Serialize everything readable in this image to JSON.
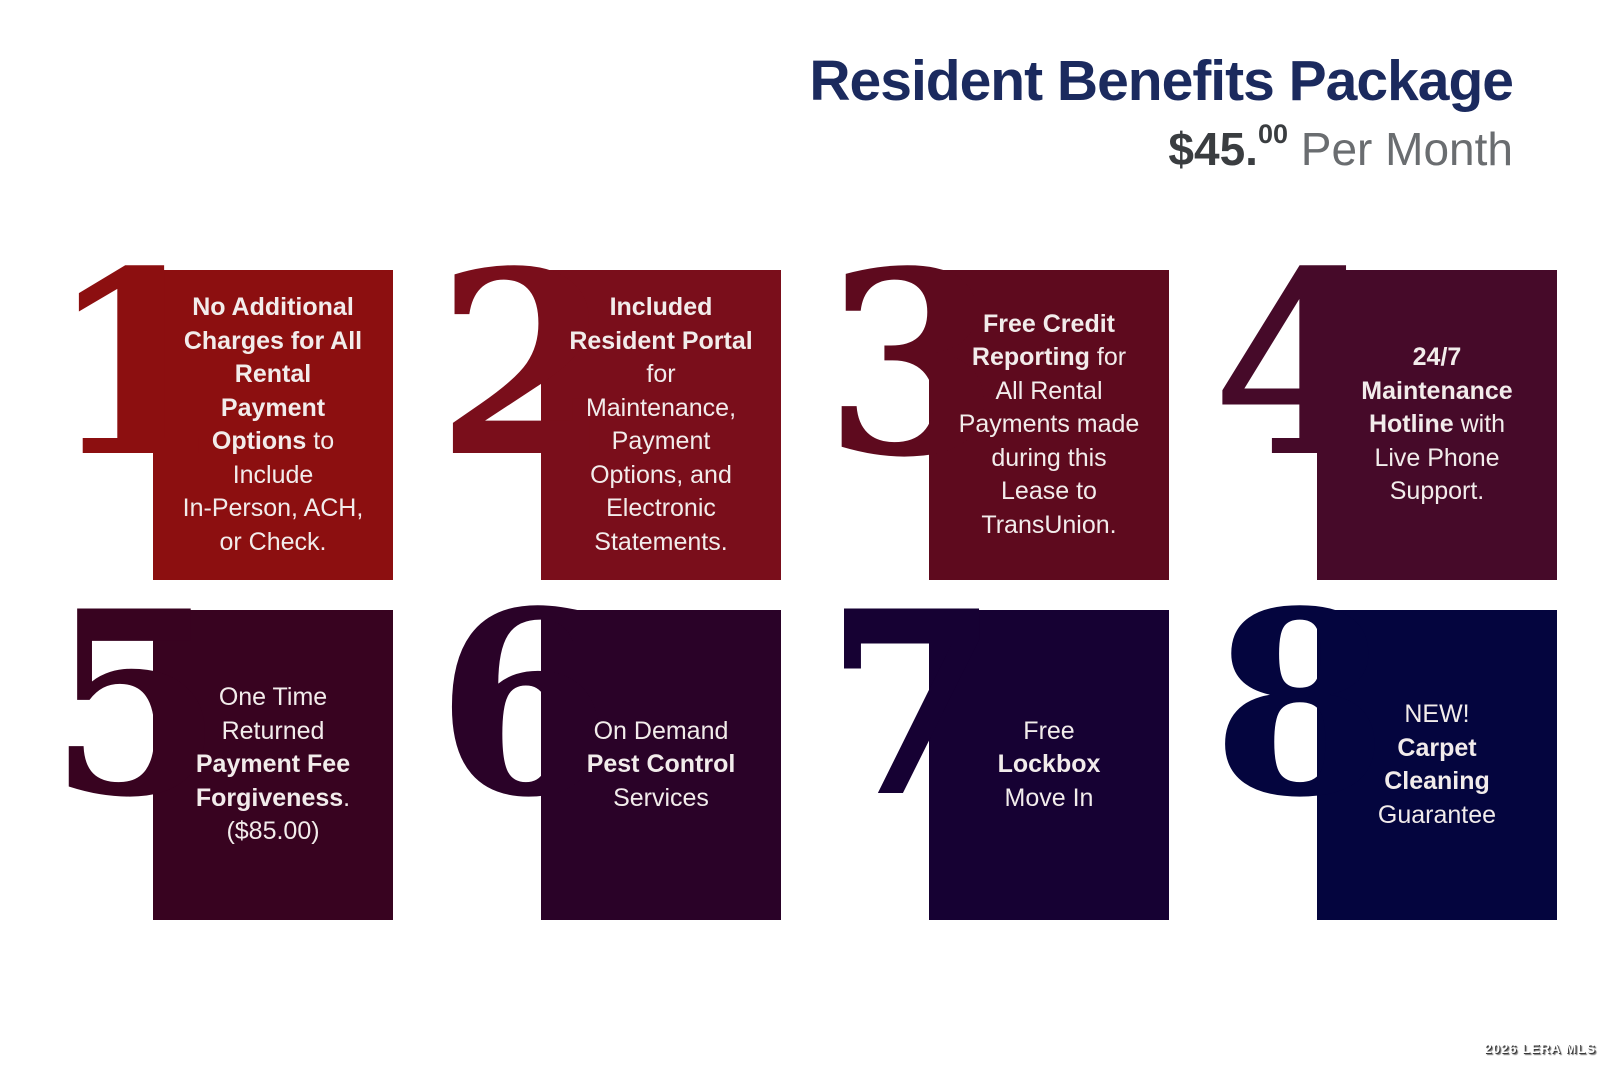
{
  "header": {
    "title": "Resident Benefits Package",
    "price_main": "$45.",
    "price_cents": "00",
    "price_suffix": " Per Month"
  },
  "cards": [
    {
      "number": "1",
      "name": "no-additional-charges",
      "color": "#8C0F10",
      "lines": [
        [
          {
            "t": "No Additional",
            "b": true
          }
        ],
        [
          {
            "t": "Charges for All",
            "b": true
          }
        ],
        [
          {
            "t": "Rental",
            "b": true
          }
        ],
        [
          {
            "t": "Payment",
            "b": true
          }
        ],
        [
          {
            "t": "Options",
            "b": true
          },
          {
            "t": " to",
            "b": false
          }
        ],
        [
          {
            "t": "Include",
            "b": false
          }
        ],
        [
          {
            "t": "In-Person, ACH,",
            "b": false
          }
        ],
        [
          {
            "t": "or Check.",
            "b": false
          }
        ]
      ]
    },
    {
      "number": "2",
      "name": "included-resident-portal",
      "color": "#7A0E1B",
      "lines": [
        [
          {
            "t": "Included",
            "b": true
          }
        ],
        [
          {
            "t": "Resident Portal",
            "b": true
          }
        ],
        [
          {
            "t": "for",
            "b": false
          }
        ],
        [
          {
            "t": "Maintenance,",
            "b": false
          }
        ],
        [
          {
            "t": "Payment",
            "b": false
          }
        ],
        [
          {
            "t": "Options, and",
            "b": false
          }
        ],
        [
          {
            "t": "Electronic",
            "b": false
          }
        ],
        [
          {
            "t": "Statements.",
            "b": false
          }
        ]
      ]
    },
    {
      "number": "3",
      "name": "free-credit-reporting",
      "color": "#5E0A1E",
      "lines": [
        [
          {
            "t": "Free Credit",
            "b": true
          }
        ],
        [
          {
            "t": "Reporting",
            "b": true
          },
          {
            "t": " for",
            "b": false
          }
        ],
        [
          {
            "t": "All Rental",
            "b": false
          }
        ],
        [
          {
            "t": "Payments made",
            "b": false
          }
        ],
        [
          {
            "t": "during this",
            "b": false
          }
        ],
        [
          {
            "t": "Lease to",
            "b": false
          }
        ],
        [
          {
            "t": "TransUnion.",
            "b": false
          }
        ]
      ]
    },
    {
      "number": "4",
      "name": "maintenance-hotline",
      "color": "#460A29",
      "lines": [
        [
          {
            "t": "24/7",
            "b": true
          }
        ],
        [
          {
            "t": "Maintenance",
            "b": true
          }
        ],
        [
          {
            "t": "Hotline",
            "b": true
          },
          {
            "t": " with",
            "b": false
          }
        ],
        [
          {
            "t": "Live Phone",
            "b": false
          }
        ],
        [
          {
            "t": "Support.",
            "b": false
          }
        ]
      ]
    },
    {
      "number": "5",
      "name": "payment-fee-forgiveness",
      "color": "#380320",
      "lines": [
        [
          {
            "t": "One Time",
            "b": false
          }
        ],
        [
          {
            "t": "Returned",
            "b": false
          }
        ],
        [
          {
            "t": "Payment Fee",
            "b": true
          }
        ],
        [
          {
            "t": "Forgiveness",
            "b": true
          },
          {
            "t": ".",
            "b": false
          }
        ],
        [
          {
            "t": "($85.00)",
            "b": false
          }
        ]
      ]
    },
    {
      "number": "6",
      "name": "pest-control",
      "color": "#2A0228",
      "lines": [
        [
          {
            "t": "On Demand",
            "b": false
          }
        ],
        [
          {
            "t": "Pest Control",
            "b": true
          }
        ],
        [
          {
            "t": "Services",
            "b": false
          }
        ]
      ]
    },
    {
      "number": "7",
      "name": "free-lockbox",
      "color": "#160133",
      "lines": [
        [
          {
            "t": "Free",
            "b": false
          }
        ],
        [
          {
            "t": "Lockbox",
            "b": true
          }
        ],
        [
          {
            "t": "Move In",
            "b": false
          }
        ]
      ]
    },
    {
      "number": "8",
      "name": "carpet-cleaning-guarantee",
      "color": "#04053E",
      "lines": [
        [
          {
            "t": "NEW!",
            "b": false
          }
        ],
        [
          {
            "t": "Carpet",
            "b": true
          }
        ],
        [
          {
            "t": "Cleaning",
            "b": true
          }
        ],
        [
          {
            "t": "Guarantee",
            "b": false
          }
        ]
      ]
    }
  ],
  "watermark": "2026 LERA MLS"
}
